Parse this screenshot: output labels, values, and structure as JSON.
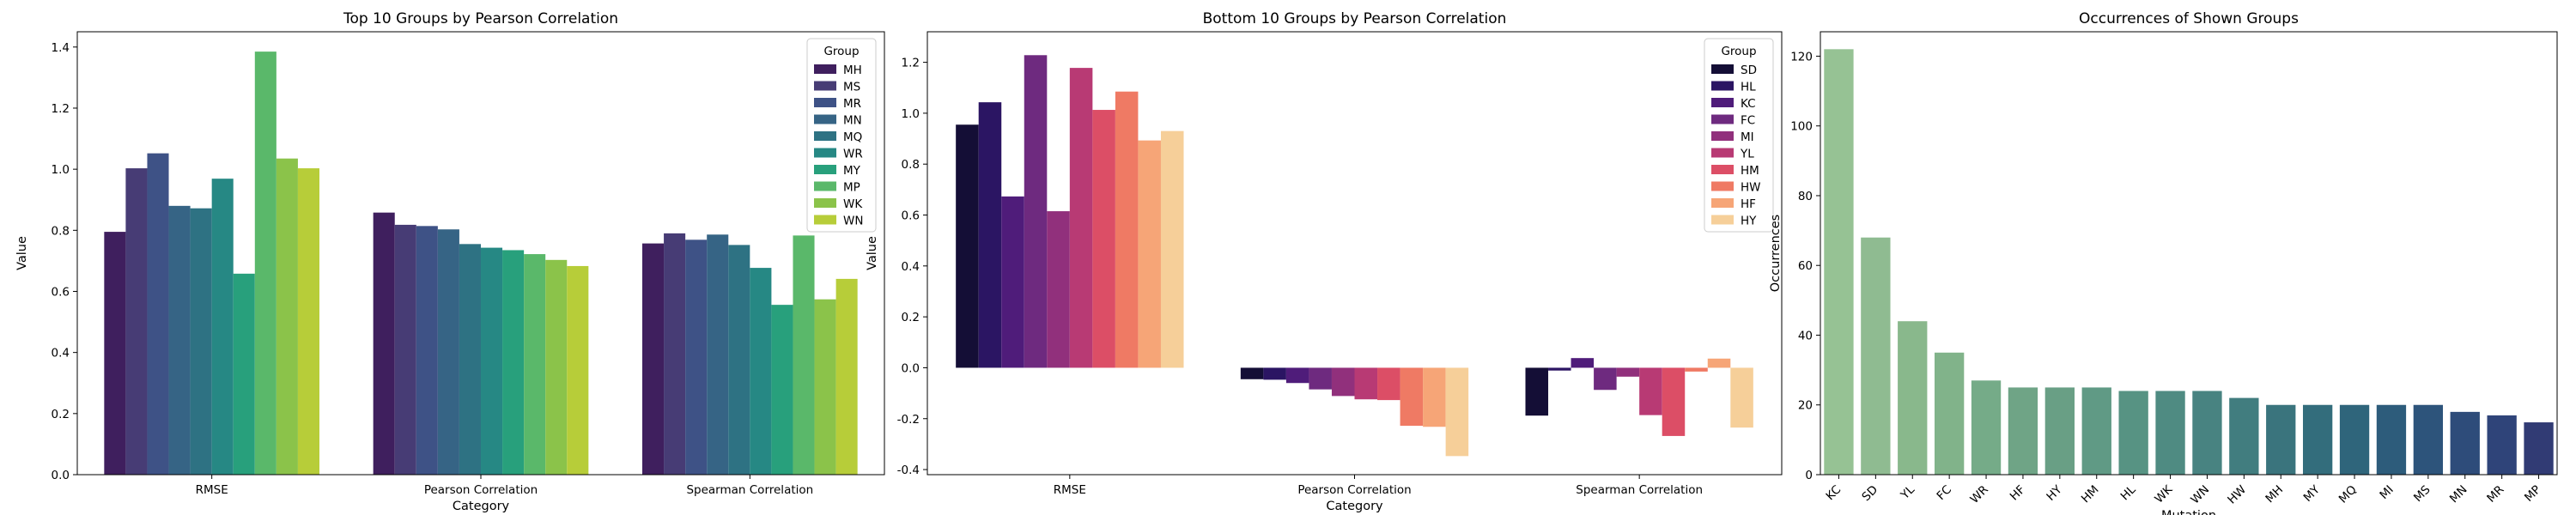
{
  "chart_data": [
    {
      "type": "bar",
      "title": "Top 10 Groups by Pearson Correlation",
      "xlabel": "Category",
      "ylabel": "Value",
      "ylim": [
        0,
        1.45
      ],
      "yticks": [
        0.0,
        0.2,
        0.4,
        0.6,
        0.8,
        1.0,
        1.2,
        1.4
      ],
      "grid": false,
      "legend": {
        "title": "Group",
        "placement": "top-right"
      },
      "categories": [
        "RMSE",
        "Pearson Correlation",
        "Spearman Correlation"
      ],
      "series": [
        {
          "name": "MH",
          "color": "#3f1f5e",
          "values": [
            0.795,
            0.858,
            0.757
          ]
        },
        {
          "name": "MS",
          "color": "#473c75",
          "values": [
            1.003,
            0.818,
            0.79
          ]
        },
        {
          "name": "MR",
          "color": "#3e5286",
          "values": [
            1.052,
            0.814,
            0.769
          ]
        },
        {
          "name": "MN",
          "color": "#366485",
          "values": [
            0.88,
            0.803,
            0.786
          ]
        },
        {
          "name": "MQ",
          "color": "#2e7283",
          "values": [
            0.872,
            0.755,
            0.752
          ]
        },
        {
          "name": "WR",
          "color": "#268884",
          "values": [
            0.969,
            0.743,
            0.677
          ]
        },
        {
          "name": "MY",
          "color": "#28a07c",
          "values": [
            0.658,
            0.735,
            0.556
          ]
        },
        {
          "name": "MP",
          "color": "#5ab86a",
          "values": [
            1.385,
            0.722,
            0.783
          ]
        },
        {
          "name": "WK",
          "color": "#8bc34a",
          "values": [
            1.035,
            0.703,
            0.574
          ]
        },
        {
          "name": "WN",
          "color": "#b7cd39",
          "values": [
            1.003,
            0.683,
            0.641
          ]
        }
      ]
    },
    {
      "type": "bar",
      "title": "Bottom 10 Groups by Pearson Correlation",
      "xlabel": "Category",
      "ylabel": "Value",
      "ylim": [
        -0.42,
        1.32
      ],
      "yticks": [
        -0.4,
        -0.2,
        0.0,
        0.2,
        0.4,
        0.6,
        0.8,
        1.0,
        1.2
      ],
      "grid": false,
      "legend": {
        "title": "Group",
        "placement": "top-right"
      },
      "categories": [
        "RMSE",
        "Pearson Correlation",
        "Spearman Correlation"
      ],
      "series": [
        {
          "name": "SD",
          "color": "#140e36",
          "values": [
            0.955,
            -0.045,
            -0.188
          ]
        },
        {
          "name": "HL",
          "color": "#2b1563",
          "values": [
            1.043,
            -0.047,
            -0.011
          ]
        },
        {
          "name": "KC",
          "color": "#4f1c7a",
          "values": [
            0.673,
            -0.06,
            0.038
          ]
        },
        {
          "name": "FC",
          "color": "#6e2a7f",
          "values": [
            1.228,
            -0.085,
            -0.087
          ]
        },
        {
          "name": "MI",
          "color": "#91307c",
          "values": [
            0.615,
            -0.111,
            -0.035
          ]
        },
        {
          "name": "YL",
          "color": "#b83a74",
          "values": [
            1.178,
            -0.124,
            -0.186
          ]
        },
        {
          "name": "HM",
          "color": "#dc4e66",
          "values": [
            1.013,
            -0.127,
            -0.268
          ]
        },
        {
          "name": "HW",
          "color": "#ef7a64",
          "values": [
            1.085,
            -0.228,
            -0.015
          ]
        },
        {
          "name": "HF",
          "color": "#f6a577",
          "values": [
            0.893,
            -0.232,
            0.036
          ]
        },
        {
          "name": "HY",
          "color": "#f6cf99",
          "values": [
            0.93,
            -0.347,
            -0.235
          ]
        }
      ]
    },
    {
      "type": "bar",
      "title": "Occurrences of Shown Groups",
      "xlabel": "Mutation",
      "ylabel": "Occurrences",
      "ylim": [
        0,
        127
      ],
      "yticks": [
        0,
        20,
        40,
        60,
        80,
        100,
        120
      ],
      "grid": false,
      "categories": [
        "KC",
        "SD",
        "YL",
        "FC",
        "WR",
        "HF",
        "HY",
        "HM",
        "HL",
        "WK",
        "WN",
        "HW",
        "MH",
        "MY",
        "MQ",
        "MI",
        "MS",
        "MN",
        "MR",
        "MP"
      ],
      "values": [
        122,
        68,
        44,
        35,
        27,
        25,
        25,
        25,
        24,
        24,
        24,
        22,
        20,
        20,
        20,
        20,
        20,
        18,
        17,
        15
      ],
      "colors": [
        "#96c294",
        "#8fbb91",
        "#89b88c",
        "#81b38a",
        "#75ab88",
        "#6fa486",
        "#699f85",
        "#609a85",
        "#579383",
        "#4f8b82",
        "#488381",
        "#417d7f",
        "#3a747d",
        "#336d7c",
        "#2f657b",
        "#2d5c7b",
        "#2d547b",
        "#2e4c7a",
        "#2f4479",
        "#313b74"
      ]
    }
  ]
}
